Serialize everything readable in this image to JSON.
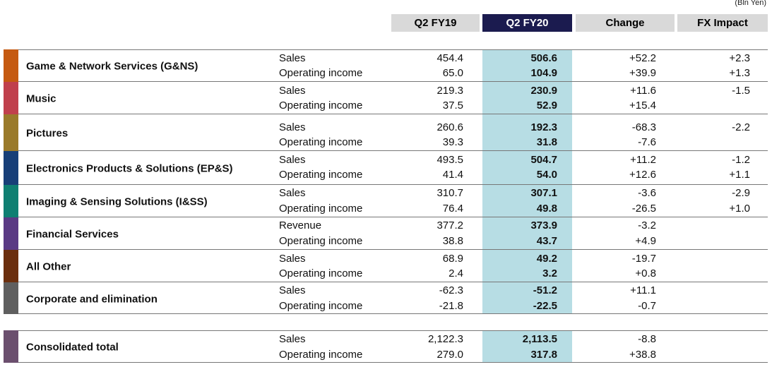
{
  "unit_label": "(Bln Yen)",
  "columns": [
    "Q2 FY19",
    "Q2 FY20",
    "Change",
    "FX Impact"
  ],
  "segments": [
    {
      "name": "Game & Network Services (G&NS)",
      "color": "#c55a11",
      "rows": [
        {
          "metric": "Sales",
          "q2fy19": "454.4",
          "q2fy20": "506.6",
          "change": "+52.2",
          "fx": "+2.3"
        },
        {
          "metric": "Operating income",
          "q2fy19": "65.0",
          "q2fy20": "104.9",
          "change": "+39.9",
          "fx": "+1.3"
        }
      ]
    },
    {
      "name": "Music",
      "color": "#c0404c",
      "rows": [
        {
          "metric": "Sales",
          "q2fy19": "219.3",
          "q2fy20": "230.9",
          "change": "+11.6",
          "fx": "-1.5"
        },
        {
          "metric": "Operating income",
          "q2fy19": "37.5",
          "q2fy20": "52.9",
          "change": "+15.4",
          "fx": ""
        }
      ]
    },
    {
      "name": "Pictures",
      "color": "#9a7a2a",
      "rows": [
        {
          "metric": "Sales",
          "q2fy19": "260.6",
          "q2fy20": "192.3",
          "change": "-68.3",
          "fx": "-2.2"
        },
        {
          "metric": "Operating income",
          "q2fy19": "39.3",
          "q2fy20": "31.8",
          "change": "-7.6",
          "fx": ""
        }
      ]
    },
    {
      "name": "Electronics Products & Solutions (EP&S)",
      "color": "#173f78",
      "rows": [
        {
          "metric": "Sales",
          "q2fy19": "493.5",
          "q2fy20": "504.7",
          "change": "+11.2",
          "fx": "-1.2"
        },
        {
          "metric": "Operating income",
          "q2fy19": "41.4",
          "q2fy20": "54.0",
          "change": "+12.6",
          "fx": "+1.1"
        }
      ]
    },
    {
      "name": "Imaging & Sensing Solutions (I&SS)",
      "color": "#0f7f72",
      "rows": [
        {
          "metric": "Sales",
          "q2fy19": "310.7",
          "q2fy20": "307.1",
          "change": "-3.6",
          "fx": "-2.9"
        },
        {
          "metric": "Operating income",
          "q2fy19": "76.4",
          "q2fy20": "49.8",
          "change": "-26.5",
          "fx": "+1.0"
        }
      ]
    },
    {
      "name": "Financial Services",
      "color": "#5a3a84",
      "rows": [
        {
          "metric": "Revenue",
          "q2fy19": "377.2",
          "q2fy20": "373.9",
          "change": "-3.2",
          "fx": ""
        },
        {
          "metric": "Operating income",
          "q2fy19": "38.8",
          "q2fy20": "43.7",
          "change": "+4.9",
          "fx": ""
        }
      ]
    },
    {
      "name": "All Other",
      "color": "#6b2f0e",
      "rows": [
        {
          "metric": "Sales",
          "q2fy19": "68.9",
          "q2fy20": "49.2",
          "change": "-19.7",
          "fx": ""
        },
        {
          "metric": "Operating income",
          "q2fy19": "2.4",
          "q2fy20": "3.2",
          "change": "+0.8",
          "fx": ""
        }
      ]
    },
    {
      "name": "Corporate and elimination",
      "color": "#5f5f5f",
      "rows": [
        {
          "metric": "Sales",
          "q2fy19": "-62.3",
          "q2fy20": "-51.2",
          "change": "+11.1",
          "fx": ""
        },
        {
          "metric": "Operating income",
          "q2fy19": "-21.8",
          "q2fy20": "-22.5",
          "change": "-0.7",
          "fx": ""
        }
      ]
    }
  ],
  "total": {
    "name": "Consolidated total",
    "color": "#6b4f6e",
    "rows": [
      {
        "metric": "Sales",
        "q2fy19": "2,122.3",
        "q2fy20": "2,113.5",
        "change": "-8.8",
        "fx": ""
      },
      {
        "metric": "Operating income",
        "q2fy19": "279.0",
        "q2fy20": "317.8",
        "change": "+38.8",
        "fx": ""
      }
    ]
  }
}
